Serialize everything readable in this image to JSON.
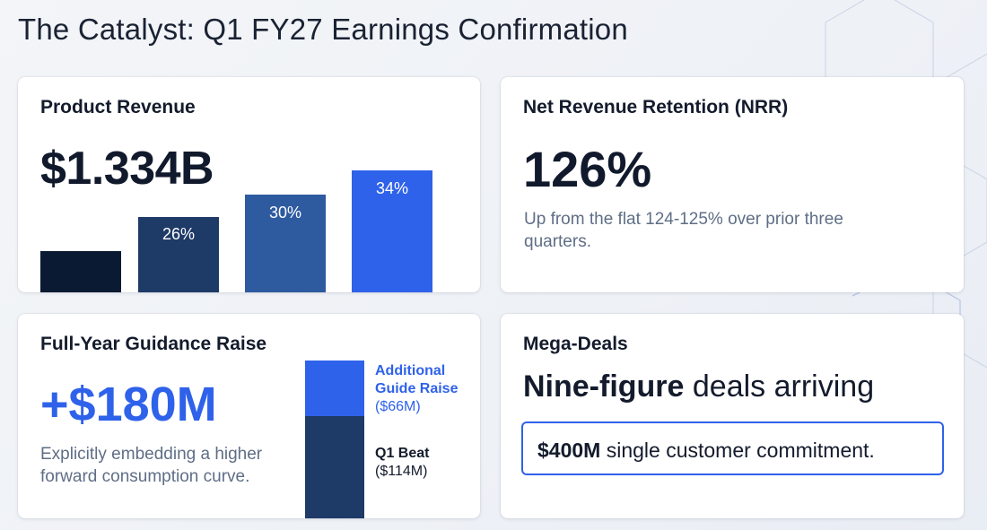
{
  "page": {
    "title": "The Catalyst: Q1 FY27 Earnings Confirmation"
  },
  "product_revenue": {
    "title": "Product Revenue",
    "value": "$1.334B",
    "bars": [
      {
        "label": "",
        "color": "#0b1a33",
        "level": 0.34
      },
      {
        "label": "26%",
        "color": "#1e3a67",
        "level": 0.62
      },
      {
        "label": "30%",
        "color": "#2e5aa0",
        "level": 0.8
      },
      {
        "label": "34%",
        "color": "#2f62ea",
        "level": 1.0
      }
    ]
  },
  "nrr": {
    "title": "Net Revenue Retention (NRR)",
    "value": "126%",
    "description": "Up from the flat 124-125% over prior three quarters."
  },
  "guidance": {
    "title": "Full-Year Guidance Raise",
    "value": "+$180M",
    "description": "Explicitly embedding a higher forward consumption curve.",
    "stack": {
      "top": {
        "label_line1": "Additional",
        "label_line2": "Guide Raise",
        "amount": "($66M)",
        "color": "#2f62ea"
      },
      "bottom": {
        "label": "Q1 Beat",
        "amount": "($114M)",
        "color": "#1e3a67"
      }
    }
  },
  "mega_deals": {
    "title": "Mega-Deals",
    "headline_bold": "Nine-figure",
    "headline_rest": " deals arriving",
    "commitment_bold": "$400M",
    "commitment_rest": " single customer commitment."
  },
  "colors": {
    "accent": "#2f62ea",
    "navy": "#0b1a33",
    "text_muted": "#5f6e86"
  }
}
